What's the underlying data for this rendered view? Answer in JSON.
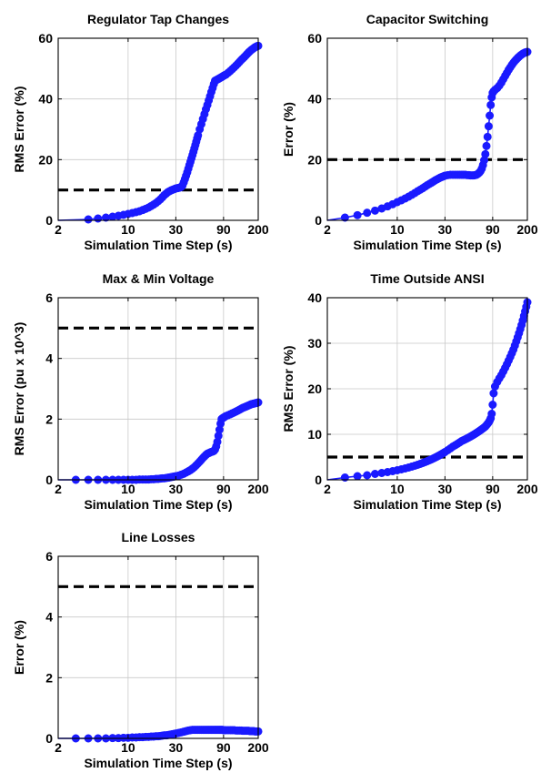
{
  "figure": {
    "background": "#ffffff",
    "line_color": "#1a1aff",
    "threshold_color": "#000000"
  },
  "chart_data": [
    {
      "type": "line",
      "title": "Regulator Tap Changes",
      "xlabel": "Simulation Time Step (s)",
      "ylabel": "RMS Error (%)",
      "x_scale": "log",
      "xlim": [
        2,
        200
      ],
      "ylim": [
        0,
        60
      ],
      "xticks": [
        2,
        10,
        30,
        90,
        200
      ],
      "yticks": [
        0,
        20,
        40,
        60
      ],
      "grid": true,
      "threshold": 10,
      "series": [
        {
          "x": [
            4,
            5,
            6,
            7,
            8,
            9,
            10,
            11,
            12,
            13,
            14,
            15,
            16,
            17,
            18,
            19,
            20,
            21,
            22,
            23,
            24,
            25,
            26,
            27,
            28,
            29,
            30,
            31,
            32,
            33,
            34,
            35,
            36,
            37,
            38,
            39,
            40,
            41,
            42,
            43,
            44,
            45,
            46,
            47,
            48,
            49,
            50,
            52,
            54,
            56,
            58,
            60,
            62,
            64,
            66,
            68,
            70,
            72,
            74,
            76,
            78,
            80,
            82,
            84,
            86,
            88,
            90,
            92,
            95,
            100,
            105,
            110,
            115,
            120,
            125,
            130,
            135,
            140,
            145,
            150,
            155,
            160,
            165,
            170,
            175,
            180,
            185,
            190,
            195,
            200
          ],
          "y": [
            0.3,
            0.6,
            0.9,
            1.2,
            1.5,
            1.8,
            2.1,
            2.4,
            2.7,
            3.0,
            3.4,
            3.8,
            4.2,
            4.7,
            5.2,
            5.7,
            6.3,
            6.9,
            7.6,
            8.3,
            8.8,
            9.3,
            9.6,
            9.9,
            10.1,
            10.3,
            10.5,
            10.6,
            10.7,
            10.8,
            11.0,
            11.5,
            12.5,
            13.6,
            14.7,
            15.8,
            17.0,
            18.2,
            19.3,
            20.4,
            21.5,
            22.6,
            23.7,
            24.8,
            25.9,
            27.0,
            28.0,
            30.0,
            31.7,
            33.4,
            35.0,
            36.6,
            38.0,
            39.5,
            40.9,
            42.3,
            43.6,
            44.9,
            46.0,
            46.2,
            46.4,
            46.6,
            46.8,
            47.0,
            47.2,
            47.4,
            47.6,
            47.8,
            48.0,
            48.6,
            49.2,
            49.8,
            50.4,
            51.0,
            51.6,
            52.2,
            52.8,
            53.3,
            53.8,
            54.3,
            54.8,
            55.3,
            55.7,
            56.1,
            56.4,
            56.7,
            57.0,
            57.2,
            57.4,
            57.5
          ]
        }
      ]
    },
    {
      "type": "line",
      "title": "Capacitor Switching",
      "xlabel": "Simulation Time Step (s)",
      "ylabel": "Error (%)",
      "x_scale": "log",
      "xlim": [
        2,
        200
      ],
      "ylim": [
        0,
        60
      ],
      "xticks": [
        2,
        10,
        30,
        90,
        200
      ],
      "yticks": [
        0,
        20,
        40,
        60
      ],
      "grid": true,
      "threshold": 20,
      "series": [
        {
          "x": [
            3,
            4,
            5,
            6,
            7,
            8,
            9,
            10,
            11,
            12,
            13,
            14,
            15,
            16,
            17,
            18,
            19,
            20,
            21,
            22,
            23,
            24,
            25,
            26,
            27,
            28,
            29,
            30,
            32,
            34,
            36,
            38,
            40,
            42,
            44,
            46,
            48,
            50,
            52,
            54,
            56,
            58,
            60,
            62,
            64,
            66,
            68,
            70,
            72,
            74,
            76,
            78,
            80,
            82,
            84,
            86,
            88,
            90,
            92,
            95,
            100,
            105,
            110,
            115,
            120,
            125,
            130,
            135,
            140,
            145,
            150,
            155,
            160,
            165,
            170,
            175,
            180,
            185,
            190,
            195,
            200
          ],
          "y": [
            0.9,
            1.7,
            2.5,
            3.2,
            3.9,
            4.6,
            5.3,
            6.0,
            6.6,
            7.2,
            7.8,
            8.4,
            9.0,
            9.6,
            10.1,
            10.6,
            11.1,
            11.6,
            12.0,
            12.4,
            12.8,
            13.2,
            13.5,
            13.8,
            14.1,
            14.3,
            14.5,
            14.7,
            14.9,
            15.0,
            15.0,
            15.0,
            15.0,
            15.0,
            15.0,
            15.0,
            15.0,
            14.9,
            14.9,
            14.8,
            14.8,
            14.8,
            14.9,
            15.0,
            15.3,
            15.7,
            16.2,
            17.0,
            18.2,
            19.8,
            21.8,
            24.5,
            27.5,
            31.0,
            34.5,
            38.0,
            40.5,
            42.0,
            42.5,
            43.0,
            43.6,
            44.4,
            45.4,
            46.5,
            47.6,
            48.6,
            49.6,
            50.4,
            51.2,
            51.9,
            52.5,
            53.0,
            53.5,
            53.9,
            54.3,
            54.6,
            54.9,
            55.1,
            55.3,
            55.4,
            55.5
          ]
        }
      ]
    },
    {
      "type": "line",
      "title": "Max & Min Voltage",
      "xlabel": "Simulation Time Step (s)",
      "ylabel": "RMS Error (pu x 10^3)",
      "x_scale": "log",
      "xlim": [
        2,
        200
      ],
      "ylim": [
        0,
        6
      ],
      "xticks": [
        2,
        10,
        30,
        90,
        200
      ],
      "yticks": [
        0,
        2,
        4,
        6
      ],
      "grid": true,
      "threshold": 5,
      "series": [
        {
          "x": [
            3,
            4,
            5,
            6,
            7,
            8,
            9,
            10,
            11,
            12,
            13,
            14,
            15,
            16,
            17,
            18,
            19,
            20,
            21,
            22,
            23,
            24,
            25,
            26,
            27,
            28,
            29,
            30,
            32,
            34,
            36,
            38,
            40,
            42,
            44,
            46,
            48,
            50,
            52,
            54,
            56,
            58,
            60,
            62,
            64,
            66,
            68,
            70,
            72,
            74,
            76,
            78,
            80,
            82,
            84,
            86,
            88,
            90,
            92,
            95,
            100,
            105,
            110,
            115,
            120,
            125,
            130,
            135,
            140,
            145,
            150,
            155,
            160,
            165,
            170,
            175,
            180,
            185,
            190,
            195,
            200
          ],
          "y": [
            0.0,
            0.0,
            0.0,
            0.0,
            0.0,
            0.0,
            0.0,
            0.0,
            0.0,
            0.0,
            0.01,
            0.01,
            0.01,
            0.01,
            0.02,
            0.02,
            0.03,
            0.03,
            0.04,
            0.05,
            0.05,
            0.06,
            0.07,
            0.08,
            0.09,
            0.1,
            0.11,
            0.12,
            0.14,
            0.17,
            0.2,
            0.24,
            0.28,
            0.32,
            0.37,
            0.42,
            0.48,
            0.54,
            0.6,
            0.66,
            0.72,
            0.77,
            0.82,
            0.86,
            0.88,
            0.9,
            0.92,
            0.93,
            0.95,
            1.0,
            1.1,
            1.25,
            1.45,
            1.65,
            1.85,
            2.0,
            2.03,
            2.05,
            2.07,
            2.1,
            2.13,
            2.16,
            2.19,
            2.22,
            2.25,
            2.28,
            2.31,
            2.34,
            2.37,
            2.39,
            2.41,
            2.43,
            2.45,
            2.47,
            2.49,
            2.5,
            2.51,
            2.52,
            2.53,
            2.54,
            2.55
          ]
        }
      ]
    },
    {
      "type": "line",
      "title": "Time Outside ANSI",
      "xlabel": "Simulation Time Step (s)",
      "ylabel": "RMS Error (%)",
      "x_scale": "log",
      "xlim": [
        2,
        200
      ],
      "ylim": [
        0,
        40
      ],
      "xticks": [
        2,
        10,
        30,
        90,
        200
      ],
      "yticks": [
        0,
        10,
        20,
        30,
        40
      ],
      "grid": true,
      "threshold": 5,
      "series": [
        {
          "x": [
            3,
            4,
            5,
            6,
            7,
            8,
            9,
            10,
            11,
            12,
            13,
            14,
            15,
            16,
            17,
            18,
            19,
            20,
            21,
            22,
            23,
            24,
            25,
            26,
            27,
            28,
            29,
            30,
            32,
            34,
            36,
            38,
            40,
            42,
            44,
            46,
            48,
            50,
            52,
            54,
            56,
            58,
            60,
            62,
            64,
            66,
            68,
            70,
            72,
            74,
            76,
            78,
            80,
            82,
            84,
            86,
            88,
            90,
            92,
            95,
            100,
            105,
            110,
            115,
            120,
            125,
            130,
            135,
            140,
            145,
            150,
            155,
            160,
            165,
            170,
            175,
            180,
            185,
            190,
            195,
            200
          ],
          "y": [
            0.5,
            0.8,
            1.0,
            1.3,
            1.5,
            1.7,
            1.9,
            2.1,
            2.3,
            2.5,
            2.7,
            2.9,
            3.1,
            3.3,
            3.5,
            3.7,
            3.9,
            4.1,
            4.3,
            4.5,
            4.7,
            4.9,
            5.1,
            5.3,
            5.5,
            5.7,
            5.9,
            6.1,
            6.5,
            6.9,
            7.3,
            7.6,
            7.9,
            8.2,
            8.5,
            8.7,
            8.9,
            9.1,
            9.3,
            9.5,
            9.7,
            9.9,
            10.1,
            10.3,
            10.5,
            10.7,
            10.9,
            11.1,
            11.3,
            11.5,
            11.7,
            12.0,
            12.3,
            12.6,
            13.0,
            13.5,
            14.5,
            16.5,
            19.0,
            20.5,
            21.5,
            22.3,
            23.0,
            23.8,
            24.6,
            25.4,
            26.2,
            27.0,
            27.8,
            28.6,
            29.5,
            30.4,
            31.3,
            32.2,
            33.1,
            34.0,
            35.0,
            36.0,
            37.0,
            38.0,
            39.0
          ]
        }
      ]
    },
    {
      "type": "line",
      "title": "Line Losses",
      "xlabel": "Simulation Time Step (s)",
      "ylabel": "Error (%)",
      "x_scale": "log",
      "xlim": [
        2,
        200
      ],
      "ylim": [
        0,
        6
      ],
      "xticks": [
        2,
        10,
        30,
        90,
        200
      ],
      "yticks": [
        0,
        2,
        4,
        6
      ],
      "grid": true,
      "threshold": 5,
      "series": [
        {
          "x": [
            3,
            4,
            5,
            6,
            7,
            8,
            9,
            10,
            11,
            12,
            13,
            14,
            15,
            16,
            17,
            18,
            19,
            20,
            21,
            22,
            23,
            24,
            25,
            26,
            27,
            28,
            29,
            30,
            32,
            34,
            36,
            38,
            40,
            42,
            44,
            46,
            48,
            50,
            52,
            54,
            56,
            58,
            60,
            62,
            64,
            66,
            68,
            70,
            72,
            74,
            76,
            78,
            80,
            82,
            84,
            86,
            88,
            90,
            92,
            95,
            100,
            105,
            110,
            115,
            120,
            125,
            130,
            135,
            140,
            145,
            150,
            155,
            160,
            165,
            170,
            175,
            180,
            185,
            190,
            195,
            200
          ],
          "y": [
            0.0,
            0.0,
            0.0,
            0.0,
            0.01,
            0.01,
            0.02,
            0.02,
            0.03,
            0.03,
            0.04,
            0.04,
            0.05,
            0.05,
            0.06,
            0.06,
            0.07,
            0.07,
            0.08,
            0.09,
            0.1,
            0.1,
            0.11,
            0.12,
            0.13,
            0.14,
            0.15,
            0.16,
            0.18,
            0.2,
            0.22,
            0.24,
            0.26,
            0.27,
            0.28,
            0.28,
            0.28,
            0.28,
            0.28,
            0.28,
            0.28,
            0.28,
            0.28,
            0.28,
            0.28,
            0.28,
            0.28,
            0.28,
            0.28,
            0.28,
            0.28,
            0.28,
            0.28,
            0.28,
            0.28,
            0.28,
            0.28,
            0.27,
            0.27,
            0.27,
            0.27,
            0.27,
            0.27,
            0.27,
            0.26,
            0.26,
            0.26,
            0.26,
            0.25,
            0.25,
            0.25,
            0.25,
            0.25,
            0.24,
            0.24,
            0.24,
            0.24,
            0.23,
            0.23,
            0.23,
            0.23
          ]
        }
      ]
    }
  ]
}
